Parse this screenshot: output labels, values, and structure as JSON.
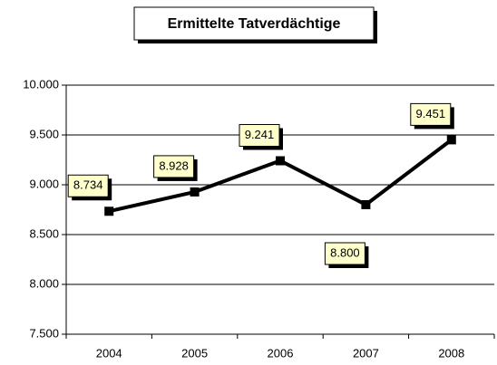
{
  "chart_data": {
    "type": "line",
    "title": "Ermittelte Tatverdächtige",
    "categories": [
      "2004",
      "2005",
      "2006",
      "2007",
      "2008"
    ],
    "series": [
      {
        "name": "Ermittelte Tatverdächtige",
        "color": "#000000",
        "values": [
          8734,
          8928,
          9241,
          8800,
          9451
        ],
        "value_labels": [
          "8.734",
          "8.928",
          "9.241",
          "8.800",
          "9.451"
        ]
      }
    ],
    "ylim": [
      7500,
      10000
    ],
    "yticks": [
      {
        "value": 7500,
        "label": "7.500"
      },
      {
        "value": 8000,
        "label": "8.000"
      },
      {
        "value": 8500,
        "label": "8.500"
      },
      {
        "value": 9000,
        "label": "9.000"
      },
      {
        "value": 9500,
        "label": "9.500"
      },
      {
        "value": 10000,
        "label": "10.000"
      }
    ],
    "grid": true
  }
}
